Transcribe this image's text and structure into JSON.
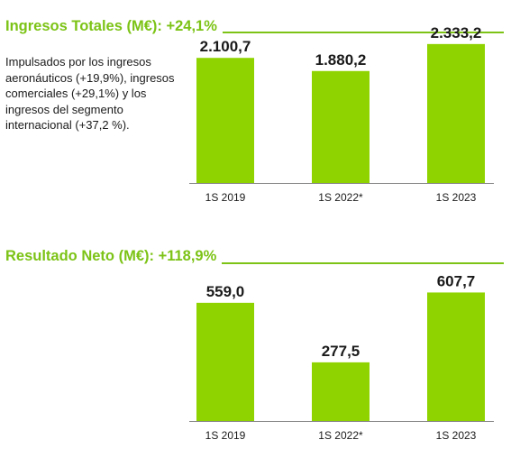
{
  "chart_data": [
    {
      "type": "bar",
      "title": "Ingresos Totales (M€): +24,1%",
      "description": "Impulsados por los ingresos aeronáuticos (+19,9%), ingresos comerciales (+29,1%) y los ingresos del segmento internacional (+37,2 %).",
      "categories": [
        "1S 2019",
        "1S 2022*",
        "1S 2023"
      ],
      "values": [
        2100.7,
        1880.2,
        2333.2
      ],
      "value_labels": [
        "2.100,7",
        "1.880,2",
        "2.333,2"
      ],
      "ylim": [
        0,
        2800
      ],
      "grid": false,
      "color": "#8fd400"
    },
    {
      "type": "bar",
      "title": "Resultado Neto (M€): +118,9%",
      "categories": [
        "1S 2019",
        "1S 2022*",
        "1S 2023"
      ],
      "values": [
        559.0,
        277.5,
        607.7
      ],
      "value_labels": [
        "559,0",
        "277,5",
        "607,7"
      ],
      "ylim": [
        0,
        780
      ],
      "grid": false,
      "color": "#8fd400"
    }
  ],
  "colors": {
    "accent": "#7cc316",
    "bar": "#8fd400",
    "axis": "#8a8a8a",
    "text": "#1a1a1a"
  }
}
